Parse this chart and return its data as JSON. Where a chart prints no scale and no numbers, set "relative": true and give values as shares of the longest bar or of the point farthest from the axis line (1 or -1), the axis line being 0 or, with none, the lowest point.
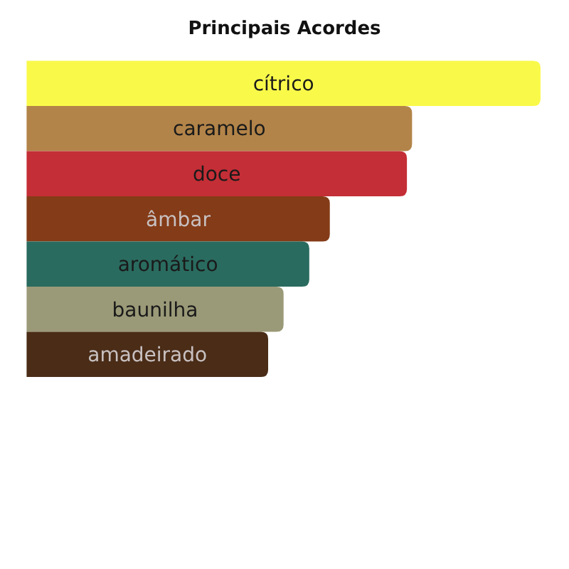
{
  "chart_data": {
    "type": "bar",
    "title": "Principais Acordes",
    "orientation": "horizontal",
    "relative": true,
    "categories": [
      "cítrico",
      "caramelo",
      "doce",
      "âmbar",
      "aromático",
      "baunilha",
      "amadeirado"
    ],
    "values": [
      1,
      0.75,
      0.74,
      0.59,
      0.55,
      0.5,
      0.47
    ],
    "colors": [
      "#f9f94a",
      "#b38449",
      "#c42e36",
      "#843b17",
      "#2a6b5f",
      "#9b9a78",
      "#4a2c17"
    ]
  }
}
